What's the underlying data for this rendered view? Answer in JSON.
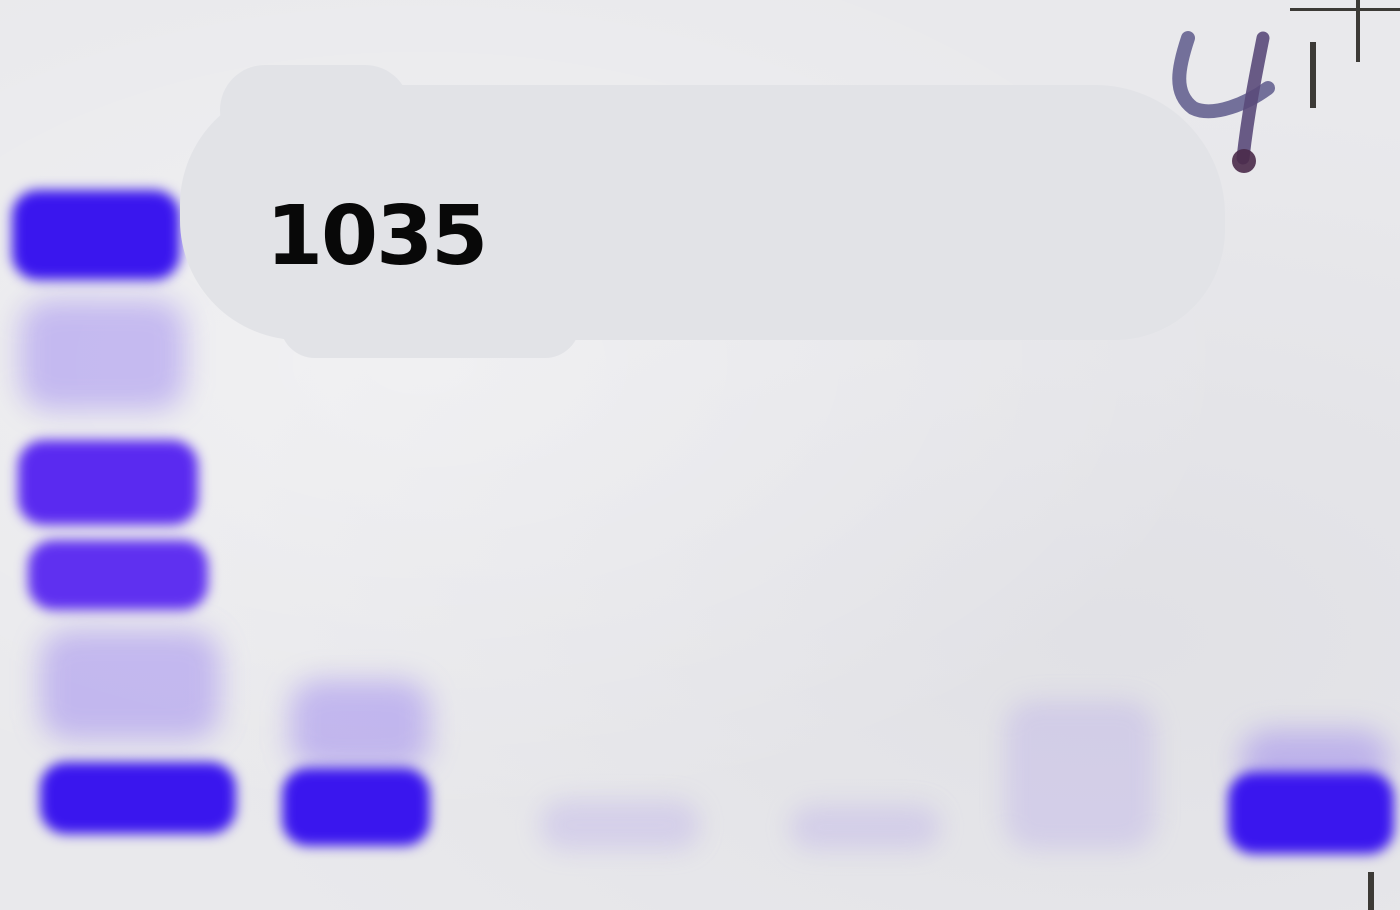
{
  "label": {
    "text": "1035"
  },
  "handwritten_mark": {
    "text": "4"
  },
  "colors": {
    "background": "#e9e9ec",
    "band": "#3a16ee",
    "label_bubble": "#e2e3e7",
    "label_text": "#080808"
  }
}
